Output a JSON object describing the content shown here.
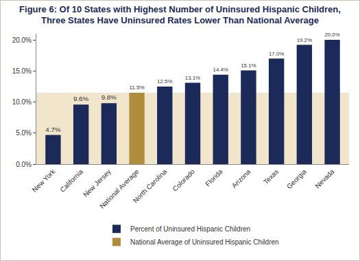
{
  "chart_data": {
    "type": "bar",
    "title": "Figure 6: Of 10 States with Highest Number of Uninsured Hispanic Children, Three States Have Uninsured Rates Lower Than National Average",
    "categories": [
      "New York",
      "California",
      "New Jersey",
      "National Average",
      "North Carolina",
      "Colorado",
      "Florida",
      "Arizona",
      "Texas",
      "Georgia",
      "Nevada"
    ],
    "series": [
      {
        "name": "Percent of Uninsured Hispanic Children",
        "color": "#1c2a5a",
        "values": [
          4.7,
          9.6,
          9.8,
          null,
          12.5,
          13.1,
          14.4,
          15.1,
          17.0,
          19.2,
          20.0
        ],
        "value_labels": [
          "4.7%",
          "9.6%",
          "9.8%",
          null,
          "12.5%",
          "13.1%",
          "14.4%",
          "15.1%",
          "17.0%",
          "19.2%",
          "20.0%"
        ]
      },
      {
        "name": "National Average of Uninsured Hispanic Children",
        "color": "#b08d3c",
        "values": [
          null,
          null,
          null,
          11.5,
          null,
          null,
          null,
          null,
          null,
          null,
          null
        ],
        "value_labels": [
          null,
          null,
          null,
          "11.5%",
          null,
          null,
          null,
          null,
          null,
          null,
          null
        ]
      }
    ],
    "ylim": [
      0,
      21
    ],
    "yticks": [
      {
        "value": 0,
        "label": "0.0%"
      },
      {
        "value": 5,
        "label": "5.0%"
      },
      {
        "value": 10,
        "label": "10.0%"
      },
      {
        "value": 15,
        "label": "15.0%"
      },
      {
        "value": 20,
        "label": "20.0%"
      }
    ],
    "grid": false,
    "data_labels": true,
    "legend": "bottom"
  }
}
